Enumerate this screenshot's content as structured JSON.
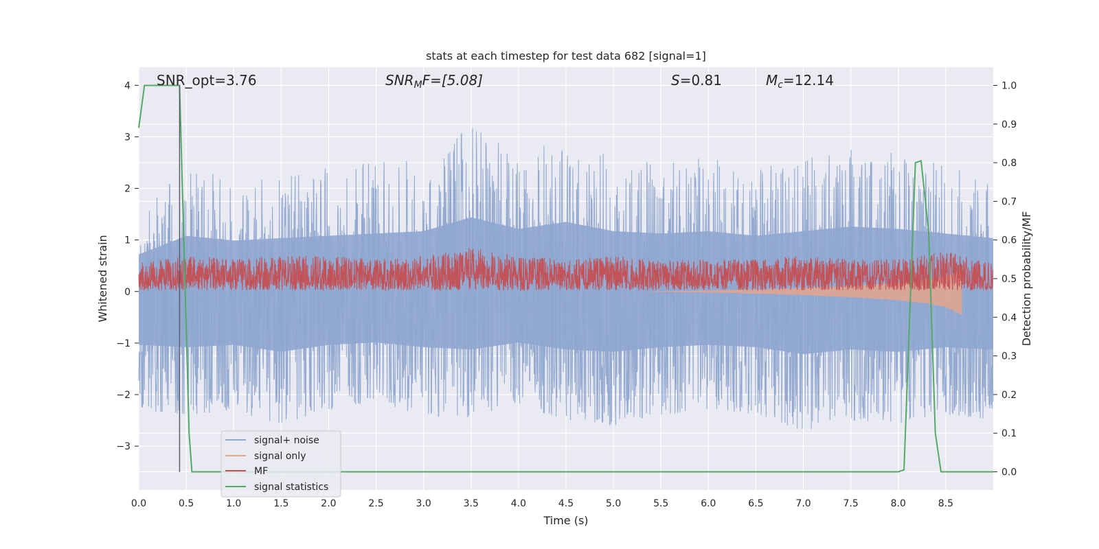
{
  "chart_data": {
    "type": "line",
    "title": "stats at each timestep for test data 682 [signal=1]",
    "xlabel": "Time (s)",
    "ylabel": "Whitened strain",
    "y2label": "Detection probability/MF",
    "xlim": [
      0.0,
      9.0
    ],
    "ylim": [
      -3.85,
      4.35
    ],
    "y2lim": [
      -0.047,
      1.047
    ],
    "xticks": [
      "0.0",
      "0.5",
      "1.0",
      "1.5",
      "2.0",
      "2.5",
      "3.0",
      "3.5",
      "4.0",
      "4.5",
      "5.0",
      "5.5",
      "6.0",
      "6.5",
      "7.0",
      "7.5",
      "8.0",
      "8.5"
    ],
    "yticks": [
      "−3",
      "−2",
      "−1",
      "0",
      "1",
      "2",
      "3",
      "4"
    ],
    "y2ticks": [
      "0.0",
      "0.1",
      "0.2",
      "0.3",
      "0.4",
      "0.5",
      "0.6",
      "0.7",
      "0.8",
      "0.9",
      "1.0"
    ],
    "grid": true,
    "legend_position": "lower-left",
    "annotations": {
      "snr_opt": "SNR_opt=3.76",
      "snr_mf_name": "SNR",
      "snr_mf_sub": "M",
      "snr_mf_rest": "F=[5.08]",
      "s_name": "S",
      "s_rest": "=0.81",
      "mc_name": "M",
      "mc_sub": "c",
      "mc_rest": "=12.14"
    },
    "marker_line_x": 0.43,
    "series": [
      {
        "name": "signal+ noise",
        "axis": "left",
        "color": "#8fa6cf",
        "envelope": true,
        "x": [
          0.0,
          0.5,
          1.0,
          1.5,
          2.0,
          2.5,
          3.0,
          3.5,
          4.0,
          4.5,
          5.0,
          5.5,
          6.0,
          6.5,
          7.0,
          7.5,
          8.0,
          8.5,
          9.0
        ],
        "upper": [
          1.6,
          2.4,
          2.2,
          2.3,
          2.4,
          2.5,
          2.6,
          3.2,
          2.7,
          3.0,
          2.6,
          2.5,
          2.6,
          2.4,
          2.6,
          2.8,
          2.7,
          2.5,
          2.3
        ],
        "lower": [
          -2.3,
          -2.4,
          -2.3,
          -2.6,
          -2.3,
          -2.2,
          -2.4,
          -2.5,
          -2.2,
          -2.5,
          -2.6,
          -2.4,
          -2.3,
          -2.4,
          -2.7,
          -2.5,
          -2.6,
          -2.4,
          -2.5
        ]
      },
      {
        "name": "signal only",
        "axis": "left",
        "color": "#e8a58a",
        "x": [
          5.3,
          6.0,
          6.5,
          7.0,
          7.5,
          8.0,
          8.3,
          8.5,
          8.67
        ],
        "upper": [
          0.0,
          0.02,
          0.04,
          0.07,
          0.11,
          0.17,
          0.23,
          0.3,
          0.4
        ],
        "lower": [
          0.0,
          -0.02,
          -0.04,
          -0.07,
          -0.11,
          -0.17,
          -0.23,
          -0.3,
          -0.45
        ]
      },
      {
        "name": "MF",
        "axis": "right",
        "color": "#c44e52",
        "envelope": true,
        "x": [
          0.0,
          0.5,
          1.0,
          1.5,
          2.0,
          2.5,
          3.0,
          3.5,
          4.0,
          4.5,
          5.0,
          5.5,
          6.0,
          6.5,
          7.0,
          7.5,
          8.0,
          8.5,
          9.0
        ],
        "upper": [
          0.54,
          0.56,
          0.55,
          0.56,
          0.56,
          0.55,
          0.56,
          0.58,
          0.56,
          0.55,
          0.56,
          0.55,
          0.55,
          0.55,
          0.56,
          0.55,
          0.55,
          0.57,
          0.54
        ],
        "lower": [
          0.47,
          0.47,
          0.47,
          0.47,
          0.47,
          0.47,
          0.47,
          0.47,
          0.47,
          0.47,
          0.47,
          0.47,
          0.47,
          0.47,
          0.47,
          0.47,
          0.47,
          0.47,
          0.47
        ]
      },
      {
        "name": "signal statistics",
        "axis": "right",
        "color": "#55a868",
        "x": [
          0.0,
          0.06,
          0.43,
          0.53,
          0.56,
          0.6,
          8.0,
          8.06,
          8.18,
          8.24,
          8.32,
          8.39,
          8.45,
          9.0
        ],
        "y": [
          0.89,
          1.0,
          1.0,
          0.1,
          0.0,
          0.0,
          0.0,
          0.005,
          0.8,
          0.805,
          0.62,
          0.1,
          0.0,
          0.0
        ]
      }
    ]
  }
}
